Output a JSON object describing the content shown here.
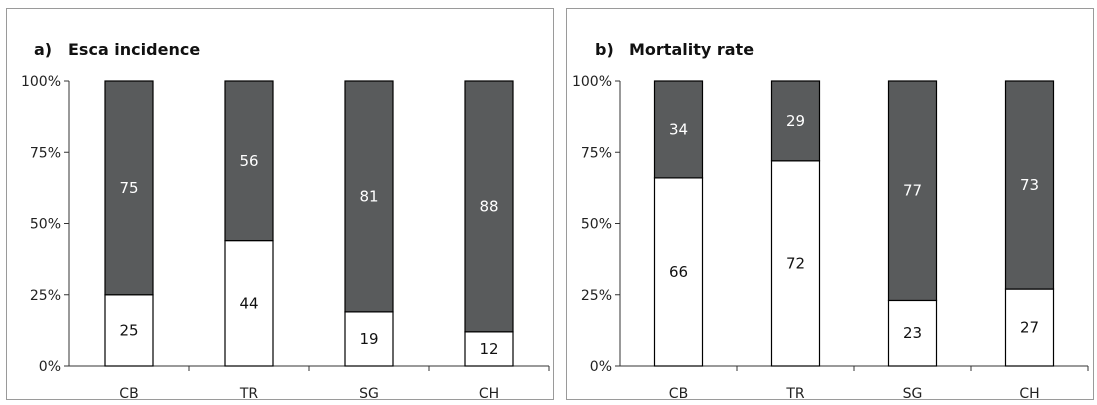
{
  "chart_data": [
    {
      "type": "bar",
      "stacked": true,
      "title_letter": "a)",
      "title": "Esca incidence",
      "categories": [
        "CB",
        "TR",
        "SG",
        "CH"
      ],
      "yticks": [
        "0%",
        "25%",
        "50%",
        "75%",
        "100%"
      ],
      "ylim": [
        0,
        100
      ],
      "series": [
        {
          "values": [
            25,
            44,
            19,
            12
          ],
          "color": "#ffffff"
        },
        {
          "values": [
            75,
            56,
            81,
            88
          ],
          "color": "#595b5c"
        }
      ]
    },
    {
      "type": "bar",
      "stacked": true,
      "title_letter": "b)",
      "title": "Mortality rate",
      "categories": [
        "CB",
        "TR",
        "SG",
        "CH"
      ],
      "yticks": [
        "0%",
        "25%",
        "50%",
        "75%",
        "100%"
      ],
      "ylim": [
        0,
        100
      ],
      "series": [
        {
          "values": [
            66,
            72,
            23,
            27
          ],
          "color": "#ffffff"
        },
        {
          "values": [
            34,
            29,
            77,
            73
          ],
          "color": "#595b5c"
        }
      ]
    }
  ]
}
